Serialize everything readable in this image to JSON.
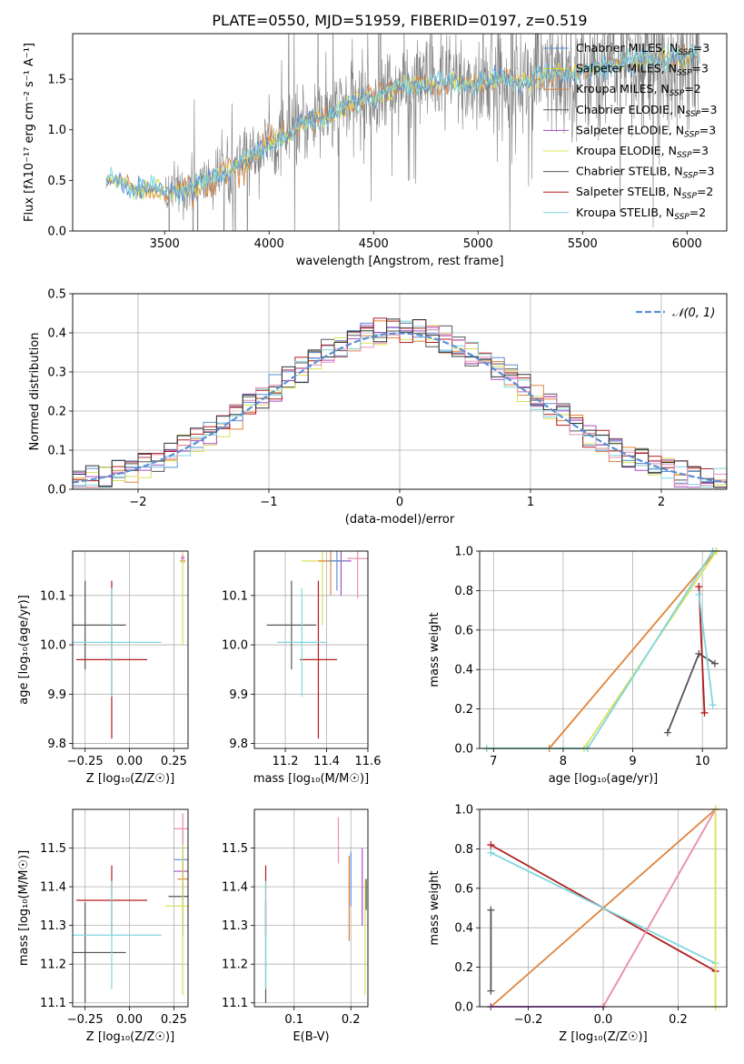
{
  "title": "PLATE=0550, MJD=51959, FIBERID=0197, z=0.519",
  "colors": {
    "chabrier_miles": "#5b8fd6",
    "salpeter_miles": "#d6d62a",
    "kroupa_miles": "#e0833a",
    "chabrier_elodie": "#555555",
    "salpeter_elodie": "#a64fc8",
    "kroupa_elodie": "#d9e05a",
    "chabrier_stelib": "#555555",
    "salpeter_stelib": "#b01c1c",
    "kroupa_stelib": "#7fd6de",
    "grid": "#b0b0b0",
    "gaussian": "#5b8fd6"
  },
  "legend": [
    {
      "label": "Chabrier MILES, N",
      "sub": "SSP",
      "tail": "=3",
      "color": "#5b8fd6"
    },
    {
      "label": "Salpeter MILES, N",
      "sub": "SSP",
      "tail": "=3",
      "color": "#d6d62a"
    },
    {
      "label": "Kroupa MILES, N",
      "sub": "SSP",
      "tail": "=2",
      "color": "#e0833a"
    },
    {
      "label": "Chabrier ELODIE, N",
      "sub": "SSP",
      "tail": "=3",
      "color": "#555555"
    },
    {
      "label": "Salpeter ELODIE, N",
      "sub": "SSP",
      "tail": "=3",
      "color": "#a64fc8"
    },
    {
      "label": "Kroupa ELODIE, N",
      "sub": "SSP",
      "tail": "=3",
      "color": "#d9e05a"
    },
    {
      "label": "Chabrier STELIB, N",
      "sub": "SSP",
      "tail": "=3",
      "color": "#555555"
    },
    {
      "label": "Salpeter STELIB, N",
      "sub": "SSP",
      "tail": "=2",
      "color": "#b01c1c"
    },
    {
      "label": "Kroupa STELIB, N",
      "sub": "SSP",
      "tail": "=2",
      "color": "#7fd6de"
    }
  ],
  "chart_data": [
    {
      "id": "spectrum",
      "type": "line",
      "ylabel": "Flux [fλ10⁻¹⁷ erg cm⁻² s⁻¹ A⁻¹]",
      "xlabel": "wavelength [Angstrom, rest frame]",
      "xlim": [
        3060,
        6190
      ],
      "ylim": [
        0,
        1.95
      ],
      "xticks": [
        3500,
        4000,
        4500,
        5000,
        5500,
        6000
      ],
      "yticks": [
        0.0,
        0.5,
        1.0,
        1.5
      ],
      "grid": false,
      "legend_position": "upper-right",
      "continuum": [
        [
          3200,
          0.5
        ],
        [
          3250,
          0.5
        ],
        [
          3300,
          0.48
        ],
        [
          3350,
          0.42
        ],
        [
          3400,
          0.42
        ],
        [
          3450,
          0.41
        ],
        [
          3500,
          0.38
        ],
        [
          3600,
          0.42
        ],
        [
          3700,
          0.48
        ],
        [
          3800,
          0.6
        ],
        [
          3900,
          0.72
        ],
        [
          4000,
          0.85
        ],
        [
          4100,
          0.98
        ],
        [
          4200,
          1.08
        ],
        [
          4300,
          1.15
        ],
        [
          4400,
          1.27
        ],
        [
          4500,
          1.33
        ],
        [
          4600,
          1.4
        ],
        [
          4700,
          1.45
        ],
        [
          4800,
          1.47
        ],
        [
          4900,
          1.45
        ],
        [
          5000,
          1.45
        ],
        [
          5100,
          1.48
        ],
        [
          5200,
          1.5
        ],
        [
          5300,
          1.52
        ],
        [
          5400,
          1.55
        ],
        [
          5500,
          1.58
        ],
        [
          5600,
          1.62
        ],
        [
          5700,
          1.66
        ],
        [
          5800,
          1.68
        ],
        [
          5900,
          1.7
        ],
        [
          6000,
          1.72
        ],
        [
          6050,
          1.74
        ]
      ],
      "data_range": [
        3220,
        6060
      ],
      "noisy_from": 3500
    },
    {
      "id": "residuals",
      "type": "histogram",
      "xlabel": "(data-model)/error",
      "ylabel": "Normed distribution",
      "xlim": [
        -2.5,
        2.5
      ],
      "ylim": [
        0,
        0.5
      ],
      "xticks": [
        -2,
        -1,
        0,
        1,
        2
      ],
      "yticks": [
        0.0,
        0.1,
        0.2,
        0.3,
        0.4,
        0.5
      ],
      "grid": true,
      "legend_position": "upper-right",
      "legend_label": "𝒩(0, 1)",
      "bin_width": 0.1
    },
    {
      "id": "age_vs_Z",
      "type": "scatter",
      "xlabel": "Z [log₁₀(Z/Z☉)]",
      "ylabel": "age  [log₁₀(age/yr)]",
      "xlim": [
        -0.32,
        0.33
      ],
      "ylim": [
        9.79,
        10.19
      ],
      "xticks": [
        -0.25,
        0.0,
        0.25
      ],
      "yticks": [
        9.8,
        9.9,
        10.0,
        10.1
      ],
      "grid": true,
      "points": [
        {
          "x": -0.25,
          "y": 10.04,
          "ex": 0.23,
          "ey": 0.09,
          "c": "#555555"
        },
        {
          "x": -0.1,
          "y": 9.97,
          "ex": 0.2,
          "ey": 0.16,
          "c": "#b01c1c"
        },
        {
          "x": -0.1,
          "y": 10.005,
          "ex": 0.28,
          "ey": 0.11,
          "c": "#7fd6de"
        },
        {
          "x": 0.3,
          "y": 10.17,
          "ex": 0.015,
          "ey": 0.005,
          "c": "#e0833a"
        },
        {
          "x": 0.3,
          "y": 10.175,
          "ex": 0.01,
          "ey": 0.005,
          "c": "#a64fc8"
        },
        {
          "x": 0.3,
          "y": 10.168,
          "ex": 0.013,
          "ey": 0.17,
          "c": "#d9e05a"
        },
        {
          "x": 0.3,
          "y": 10.178,
          "ex": 0.01,
          "ey": 0.005,
          "c": "#e88fb4"
        }
      ]
    },
    {
      "id": "age_vs_mass",
      "type": "scatter",
      "xlabel": "mass [log₁₀(M/M☉)]",
      "ylabel": "",
      "xlim": [
        11.05,
        11.6
      ],
      "ylim": [
        9.79,
        10.19
      ],
      "xticks": [
        11.2,
        11.4,
        11.6
      ],
      "yticks": [
        9.8,
        9.9,
        10.0,
        10.1
      ],
      "grid": true,
      "points": [
        {
          "x": 11.23,
          "y": 10.04,
          "ex": 0.12,
          "ey": 0.09,
          "c": "#555555"
        },
        {
          "x": 11.36,
          "y": 9.97,
          "ex": 0.09,
          "ey": 0.16,
          "c": "#b01c1c"
        },
        {
          "x": 11.28,
          "y": 10.005,
          "ex": 0.12,
          "ey": 0.11,
          "c": "#7fd6de"
        },
        {
          "x": 11.38,
          "y": 10.17,
          "ex": 0.1,
          "ey": 0.13,
          "c": "#d9e05a"
        },
        {
          "x": 11.47,
          "y": 10.17,
          "ex": 0.05,
          "ey": 0.07,
          "c": "#a64fc8"
        },
        {
          "x": 11.42,
          "y": 10.17,
          "ex": 0.06,
          "ey": 0.07,
          "c": "#e0833a"
        },
        {
          "x": 11.55,
          "y": 10.175,
          "ex": 0.05,
          "ey": 0.08,
          "c": "#e88fb4"
        },
        {
          "x": 11.45,
          "y": 10.17,
          "ex": 0.04,
          "ey": 0.06,
          "c": "#5b8fd6"
        }
      ]
    },
    {
      "id": "weight_vs_age",
      "type": "line",
      "xlabel": "age  [log₁₀(age/yr)]",
      "ylabel": "mass weight",
      "xlim": [
        6.8,
        10.35
      ],
      "ylim": [
        0,
        1.0
      ],
      "xticks": [
        7,
        8,
        9,
        10
      ],
      "yticks": [
        0.0,
        0.2,
        0.4,
        0.6,
        0.8,
        1.0
      ],
      "grid": true,
      "series": [
        {
          "c": "#e0833a",
          "pts": [
            [
              6.9,
              0
            ],
            [
              7.8,
              0
            ],
            [
              10.2,
              1.0
            ]
          ]
        },
        {
          "c": "#d9e05a",
          "pts": [
            [
              6.9,
              0
            ],
            [
              8.3,
              0
            ],
            [
              10.2,
              1.0
            ]
          ]
        },
        {
          "c": "#7fd6de",
          "pts": [
            [
              6.9,
              0
            ],
            [
              8.35,
              0
            ],
            [
              10.15,
              1.0
            ]
          ]
        },
        {
          "c": "#555555",
          "pts": [
            [
              9.5,
              0.08
            ],
            [
              9.95,
              0.48
            ],
            [
              10.18,
              0.43
            ]
          ]
        },
        {
          "c": "#b01c1c",
          "pts": [
            [
              9.95,
              0.82
            ],
            [
              10.03,
              0.18
            ]
          ]
        },
        {
          "c": "#7fd6de",
          "pts": [
            [
              9.95,
              0.78
            ],
            [
              10.15,
              0.22
            ]
          ]
        }
      ]
    },
    {
      "id": "mass_vs_Z",
      "type": "scatter",
      "xlabel": "Z [log₁₀(Z/Z☉)]",
      "ylabel": "mass [log₁₀(M/M☉)]",
      "xlim": [
        -0.32,
        0.33
      ],
      "ylim": [
        11.09,
        11.6
      ],
      "xticks": [
        -0.25,
        0.0,
        0.25
      ],
      "yticks": [
        11.1,
        11.2,
        11.3,
        11.4,
        11.5
      ],
      "grid": true,
      "points": [
        {
          "x": -0.25,
          "y": 11.23,
          "ex": 0.23,
          "ey": 0.13,
          "c": "#555555"
        },
        {
          "x": -0.1,
          "y": 11.365,
          "ex": 0.2,
          "ey": 0.09,
          "c": "#b01c1c"
        },
        {
          "x": -0.1,
          "y": 11.275,
          "ex": 0.28,
          "ey": 0.14,
          "c": "#7fd6de"
        },
        {
          "x": 0.3,
          "y": 11.47,
          "ex": 0.05,
          "ey": 0.08,
          "c": "#5b8fd6"
        },
        {
          "x": 0.3,
          "y": 11.44,
          "ex": 0.05,
          "ey": 0.06,
          "c": "#a64fc8"
        },
        {
          "x": 0.3,
          "y": 11.42,
          "ex": 0.03,
          "ey": 0.05,
          "c": "#e0833a"
        },
        {
          "x": 0.3,
          "y": 11.375,
          "ex": 0.08,
          "ey": 0.1,
          "c": "#555555"
        },
        {
          "x": 0.3,
          "y": 11.35,
          "ex": 0.1,
          "ey": 0.23,
          "c": "#d9e05a"
        },
        {
          "x": 0.3,
          "y": 11.55,
          "ex": 0.05,
          "ey": 0.04,
          "c": "#e88fb4"
        }
      ]
    },
    {
      "id": "mass_vs_EBV",
      "type": "scatter",
      "xlabel": "E(B-V)",
      "ylabel": "",
      "xlim": [
        0.03,
        0.23
      ],
      "ylim": [
        11.09,
        11.6
      ],
      "xticks": [
        0.1,
        0.2
      ],
      "yticks": [
        11.1,
        11.2,
        11.3,
        11.4,
        11.5
      ],
      "grid": true,
      "points": [
        {
          "x": 0.05,
          "y": 11.23,
          "ex": 0,
          "ey": 0.13,
          "c": "#555555"
        },
        {
          "x": 0.05,
          "y": 11.365,
          "ex": 0,
          "ey": 0.09,
          "c": "#b01c1c"
        },
        {
          "x": 0.05,
          "y": 11.275,
          "ex": 0,
          "ey": 0.14,
          "c": "#7fd6de"
        },
        {
          "x": 0.178,
          "y": 11.52,
          "ex": 0,
          "ey": 0.06,
          "c": "#e88fb4"
        },
        {
          "x": 0.197,
          "y": 11.37,
          "ex": 0,
          "ey": 0.11,
          "c": "#e0833a"
        },
        {
          "x": 0.2,
          "y": 11.42,
          "ex": 0,
          "ey": 0.07,
          "c": "#5b8fd6"
        },
        {
          "x": 0.22,
          "y": 11.4,
          "ex": 0,
          "ey": 0.1,
          "c": "#a64fc8"
        },
        {
          "x": 0.225,
          "y": 11.27,
          "ex": 0,
          "ey": 0.15,
          "c": "#d9e05a"
        },
        {
          "x": 0.227,
          "y": 11.38,
          "ex": 0,
          "ey": 0.04,
          "c": "#555555"
        }
      ]
    },
    {
      "id": "weight_vs_Z",
      "type": "line",
      "xlabel": "Z [log₁₀(Z/Z☉)]",
      "ylabel": "mass weight",
      "xlim": [
        -0.33,
        0.33
      ],
      "ylim": [
        0,
        1.0
      ],
      "xticks": [
        -0.2,
        0.0,
        0.2
      ],
      "yticks": [
        0.0,
        0.2,
        0.4,
        0.6,
        0.8,
        1.0
      ],
      "grid": true,
      "series": [
        {
          "c": "#e0833a",
          "pts": [
            [
              -0.3,
              0
            ],
            [
              0.3,
              1.0
            ]
          ]
        },
        {
          "c": "#b01c1c",
          "pts": [
            [
              -0.3,
              0.82
            ],
            [
              0.3,
              0.18
            ]
          ]
        },
        {
          "c": "#7fd6de",
          "pts": [
            [
              -0.3,
              0.78
            ],
            [
              0.3,
              0.22
            ]
          ]
        },
        {
          "c": "#d9e05a",
          "pts": [
            [
              0,
              0
            ],
            [
              0.3,
              1.0
            ]
          ]
        },
        {
          "c": "#a64fc8",
          "pts": [
            [
              -0.3,
              0
            ],
            [
              0,
              0
            ]
          ]
        },
        {
          "c": "#555555",
          "pts": [
            [
              -0.3,
              0.08
            ],
            [
              -0.3,
              0.49
            ]
          ]
        },
        {
          "c": "#e88fb4",
          "pts": [
            [
              0,
              0
            ],
            [
              0.3,
              1.0
            ]
          ]
        },
        {
          "c": "#d9e05a",
          "pts": [
            [
              0.3,
              0
            ],
            [
              0.3,
              1.0
            ]
          ]
        }
      ]
    }
  ]
}
